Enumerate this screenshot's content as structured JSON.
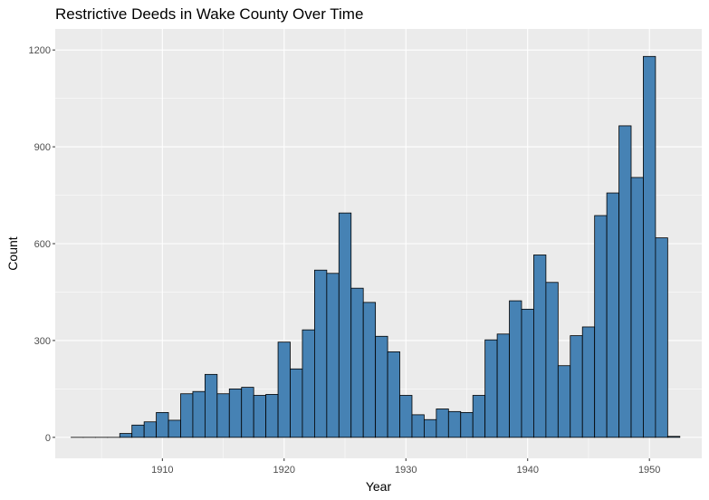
{
  "chart_data": {
    "type": "bar",
    "title": "Restrictive Deeds in Wake County Over Time",
    "xlabel": "Year",
    "ylabel": "Count",
    "bin_width": 1,
    "x": [
      1903,
      1904,
      1905,
      1906,
      1907,
      1908,
      1909,
      1910,
      1911,
      1912,
      1913,
      1914,
      1915,
      1916,
      1917,
      1918,
      1919,
      1920,
      1921,
      1922,
      1923,
      1924,
      1925,
      1926,
      1927,
      1928,
      1929,
      1930,
      1931,
      1932,
      1933,
      1934,
      1935,
      1936,
      1937,
      1938,
      1939,
      1940,
      1941,
      1942,
      1943,
      1944,
      1945,
      1946,
      1947,
      1948,
      1949,
      1950,
      1951,
      1952
    ],
    "values": [
      0,
      0,
      0,
      0,
      12,
      38,
      48,
      77,
      53,
      135,
      142,
      195,
      135,
      150,
      155,
      130,
      133,
      295,
      212,
      333,
      518,
      508,
      695,
      462,
      418,
      313,
      265,
      130,
      70,
      55,
      88,
      80,
      77,
      130,
      302,
      320,
      423,
      397,
      565,
      480,
      222,
      315,
      342,
      687,
      757,
      965,
      805,
      1180,
      618,
      3
    ],
    "xlim": [
      1901.2,
      1954.3
    ],
    "ylim": [
      -65,
      1265
    ],
    "x_ticks": [
      1910,
      1920,
      1930,
      1940,
      1950
    ],
    "x_tick_labels": [
      "1910",
      "1920",
      "1930",
      "1940",
      "1950"
    ],
    "y_ticks": [
      0,
      300,
      600,
      900,
      1200
    ],
    "y_tick_labels": [
      "0",
      "300",
      "600",
      "900",
      "1200"
    ],
    "grid": true,
    "colors": {
      "panel": "#EBEBEB",
      "grid_major": "#FFFFFF",
      "bar_fill": "#4682B4",
      "bar_stroke": "#000000"
    }
  }
}
